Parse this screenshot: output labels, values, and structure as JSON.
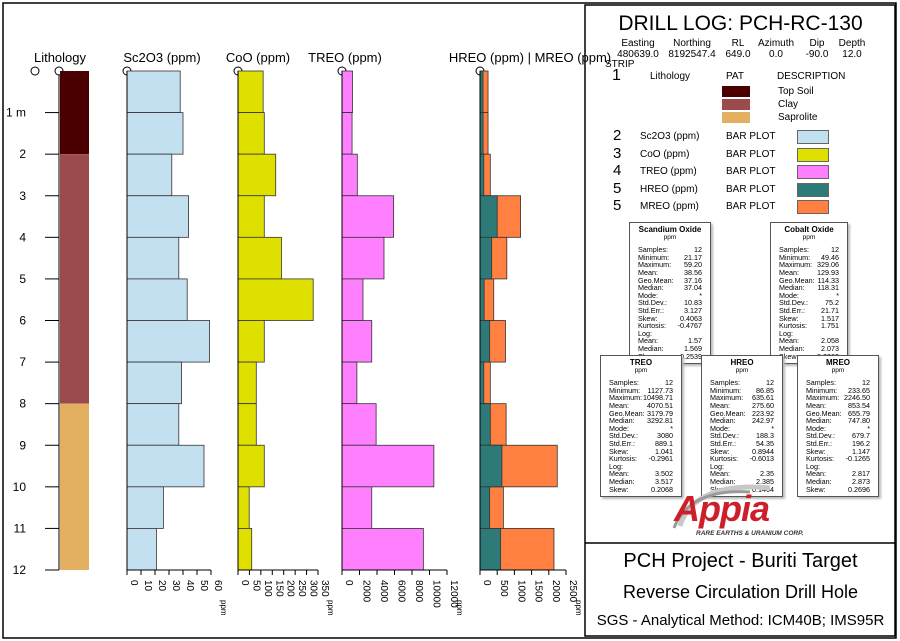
{
  "header": {
    "title": "DRILL LOG: PCH-RC-130",
    "collar": [
      {
        "label": "Easting",
        "value": "480639.0"
      },
      {
        "label": "Northing",
        "value": "8192547.4"
      },
      {
        "label": "RL",
        "value": "649.0"
      },
      {
        "label": "Azimuth",
        "value": "0.0"
      },
      {
        "label": "Dip",
        "value": "-90.0"
      },
      {
        "label": "Depth",
        "value": "12.0"
      }
    ]
  },
  "legend": {
    "strip_label": "STRIP",
    "pat_label": "PAT",
    "description_label": "DESCRIPTION",
    "lithology": {
      "num": "1",
      "name": "Lithology"
    },
    "units": [
      {
        "name": "Top Soil",
        "color": "#4a0000"
      },
      {
        "name": "Clay",
        "color": "#9b4b4b"
      },
      {
        "name": "Saprolite",
        "color": "#e2b060"
      }
    ],
    "strips": [
      {
        "num": "2",
        "name": "Sc2O3 (ppm)",
        "type": "BAR PLOT",
        "color": "#c3e0f0"
      },
      {
        "num": "3",
        "name": "CoO (ppm)",
        "type": "BAR PLOT",
        "color": "#e0e000"
      },
      {
        "num": "4",
        "name": "TREO (ppm)",
        "type": "BAR PLOT",
        "color": "#ff80ff"
      },
      {
        "num": "5",
        "name": "HREO (ppm)",
        "type": "BAR PLOT",
        "color": "#2e7a78"
      },
      {
        "num": "5",
        "name": "MREO (ppm)",
        "type": "BAR PLOT",
        "color": "#ff8040"
      }
    ]
  },
  "stats": {
    "labels": [
      "Samples:",
      "Minimum:",
      "Maximum:",
      "Mean:",
      "Geo.Mean:",
      "Median:",
      "Mode:",
      "Std.Dev.:",
      "Std.Err.:",
      "Skew:",
      "Kurtosis:",
      "Log:",
      "Mean:",
      "Median:",
      "Skew:"
    ],
    "boxes": [
      {
        "title": "Scandium Oxide",
        "unit": "ppm",
        "values": [
          "12",
          "21.17",
          "59.20",
          "38.56",
          "37.16",
          "37.04",
          "*",
          "10.83",
          "3.127",
          "0.4063",
          "-0.4767",
          "",
          "1.57",
          "1.569",
          "-0.2539"
        ]
      },
      {
        "title": "Cobalt Oxide",
        "unit": "ppm",
        "values": [
          "12",
          "49.46",
          "329.06",
          "129.93",
          "114.33",
          "118.31",
          "*",
          "75.2",
          "21.71",
          "1.517",
          "1.751",
          "",
          "2.058",
          "2.073",
          "0.2903"
        ]
      },
      {
        "title": "TREO",
        "unit": "ppm",
        "values": [
          "12",
          "1127.73",
          "10498.71",
          "4070.51",
          "3179.79",
          "3292.81",
          "*",
          "3080",
          "889.1",
          "1.041",
          "-0.2961",
          "",
          "3.502",
          "3.517",
          "0.2068"
        ]
      },
      {
        "title": "HREO",
        "unit": "ppm",
        "values": [
          "12",
          "86.85",
          "635.61",
          "275.60",
          "223.92",
          "242.97",
          "*",
          "188.3",
          "54.35",
          "0.8944",
          "-0.6013",
          "",
          "2.35",
          "2.385",
          "0.1464"
        ]
      },
      {
        "title": "MREO",
        "unit": "ppm",
        "values": [
          "12",
          "233.65",
          "2246.50",
          "853.54",
          "655.79",
          "747.80",
          "*",
          "679.7",
          "196.2",
          "1.147",
          "-0.1265",
          "",
          "2.817",
          "2.873",
          "0.2696"
        ]
      }
    ]
  },
  "logo": {
    "name": "Appia",
    "tagline": "RARE EARTHS & URANIUM CORP."
  },
  "footer": {
    "project": "PCH Project - Buriti Target",
    "hole_type": "Reverse Circulation Drill Hole",
    "method": "SGS - Analytical Method: ICM40B; IMS95R"
  },
  "chart_data": {
    "type": "bar",
    "orientation": "horizontal-downhole",
    "depth_ticks": [
      "1 m",
      "2",
      "3",
      "4",
      "5",
      "6",
      "7",
      "8",
      "9",
      "10",
      "11",
      "12"
    ],
    "depth_intervals": [
      [
        0,
        1
      ],
      [
        1,
        2
      ],
      [
        2,
        3
      ],
      [
        3,
        4
      ],
      [
        4,
        5
      ],
      [
        5,
        6
      ],
      [
        6,
        7
      ],
      [
        7,
        8
      ],
      [
        8,
        9
      ],
      [
        9,
        10
      ],
      [
        10,
        11
      ],
      [
        11,
        12
      ]
    ],
    "lithology": {
      "title": "Lithology",
      "intervals": [
        {
          "from": 0,
          "to": 2,
          "unit": "Top Soil"
        },
        {
          "from": 2,
          "to": 8,
          "unit": "Clay"
        },
        {
          "from": 8,
          "to": 12,
          "unit": "Saprolite"
        }
      ]
    },
    "tracks": [
      {
        "title": "Sc2O3 (ppm)",
        "unit": "ppm",
        "xlim": [
          0,
          60
        ],
        "ticks": [
          "0",
          "10",
          "20",
          "30",
          "40",
          "50",
          "60"
        ],
        "color": "#c3e0f0",
        "values": [
          38,
          40,
          32,
          44,
          37,
          43,
          59,
          39,
          37,
          55,
          26,
          21
        ]
      },
      {
        "title": "CoO (ppm)",
        "unit": "ppm",
        "xlim": [
          0,
          350
        ],
        "ticks": [
          "0",
          "50",
          "100",
          "150",
          "200",
          "250",
          "300",
          "350"
        ],
        "color": "#e0e000",
        "values": [
          110,
          115,
          165,
          115,
          190,
          329,
          115,
          80,
          80,
          115,
          49,
          60
        ]
      },
      {
        "title": "TREO (ppm)",
        "unit": "ppm",
        "xlim": [
          0,
          12000
        ],
        "ticks": [
          "0",
          "2000",
          "4000",
          "6000",
          "8000",
          "10000",
          "12000"
        ],
        "color": "#ff80ff",
        "values": [
          1200,
          1150,
          1750,
          5900,
          4800,
          2400,
          3400,
          1700,
          3900,
          10500,
          3400,
          9300
        ]
      },
      {
        "title": "HREO (ppm) | MREO (ppm)",
        "unit": "ppm",
        "xlim": [
          0,
          2500
        ],
        "ticks": [
          "0",
          "500",
          "1000",
          "1500",
          "2000",
          "2500"
        ],
        "series": [
          {
            "name": "MREO (ppm)",
            "color": "#ff8040",
            "values": [
              234,
              234,
              300,
              1180,
              780,
              400,
              740,
              300,
              760,
              2246,
              680,
              2150
            ]
          },
          {
            "name": "HREO (ppm)",
            "color": "#2e7a78",
            "values": [
              87,
              90,
              110,
              500,
              340,
              120,
              280,
              110,
              300,
              636,
              280,
              600
            ]
          }
        ]
      }
    ]
  }
}
